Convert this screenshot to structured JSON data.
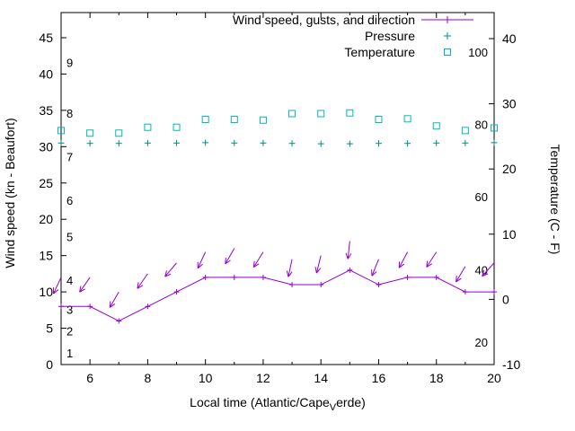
{
  "chart_data": {
    "type": "line",
    "title": "",
    "legend": [
      {
        "label": "Wind speed, gusts, and direction",
        "marker": "line-with-point",
        "color": "#9400d3"
      },
      {
        "label": "Pressure",
        "marker": "plus",
        "color": "#008b8b"
      },
      {
        "label": "Temperature",
        "marker": "open-square",
        "color": "#00b8bc"
      }
    ],
    "x": [
      5,
      6,
      7,
      8,
      9,
      10,
      11,
      12,
      13,
      14,
      15,
      16,
      17,
      18,
      19,
      20
    ],
    "series": [
      {
        "name": "Wind speed",
        "style": "line-with-points",
        "axis": "left",
        "color": "#9400d3",
        "values": [
          8,
          8,
          6,
          8,
          10,
          12,
          12,
          12,
          11,
          11,
          13,
          11,
          12,
          12,
          10,
          10
        ]
      },
      {
        "name": "Gusts and direction",
        "style": "arrows",
        "axis": "left",
        "color": "#9400d3",
        "values": [
          12,
          12,
          10,
          12.5,
          14,
          15.5,
          16,
          15.5,
          14.5,
          15,
          17,
          14.5,
          15.5,
          15.5,
          13.5,
          14
        ],
        "direction_deg": [
          205,
          215,
          210,
          215,
          220,
          205,
          210,
          212,
          192,
          194,
          186,
          202,
          208,
          213,
          211,
          222
        ]
      },
      {
        "name": "Pressure",
        "style": "plus-points",
        "axis": "left",
        "color": "#008b8b",
        "values": [
          30.5,
          30.45,
          30.45,
          30.5,
          30.5,
          30.55,
          30.5,
          30.5,
          30.45,
          30.4,
          30.4,
          30.45,
          30.45,
          30.5,
          30.5,
          30.55
        ]
      },
      {
        "name": "Temperature",
        "style": "square-points",
        "axis": "right",
        "color": "#00b8bc",
        "values": [
          25.9,
          25.5,
          25.5,
          26.4,
          26.4,
          27.6,
          27.6,
          27.5,
          28.5,
          28.5,
          28.6,
          27.6,
          27.7,
          26.6,
          25.9,
          26.3
        ]
      }
    ],
    "axes": {
      "x": {
        "title_prefix": "Local time (Atlantic/Cape",
        "title_sub": "V",
        "title_suffix": "erde)",
        "min": 5,
        "max": 20,
        "major_ticks": [
          6,
          8,
          10,
          12,
          14,
          16,
          18,
          20
        ],
        "minor_step": 1
      },
      "y_left": {
        "title": "Wind speed (kn - Beaufort)",
        "min": 0,
        "max": 45,
        "ticks": [
          0,
          5,
          10,
          15,
          20,
          25,
          30,
          35,
          40,
          45
        ],
        "beaufort_labels": [
          "1",
          "2",
          "3",
          "4",
          "5",
          "6",
          "7",
          "8",
          "9"
        ],
        "beaufort_positions_kn": [
          1,
          4,
          7,
          11,
          17,
          22,
          28,
          34,
          41
        ]
      },
      "y_right": {
        "title": "Temperature (C - F)",
        "min": -10,
        "max": 40,
        "ticks": [
          -10,
          0,
          10,
          20,
          30,
          40
        ],
        "fahrenheit_labels": [
          "20",
          "40",
          "60",
          "80",
          "100"
        ],
        "fahrenheit_positions_c": [
          -6.7,
          4.4,
          15.6,
          26.7,
          37.8
        ]
      }
    }
  }
}
